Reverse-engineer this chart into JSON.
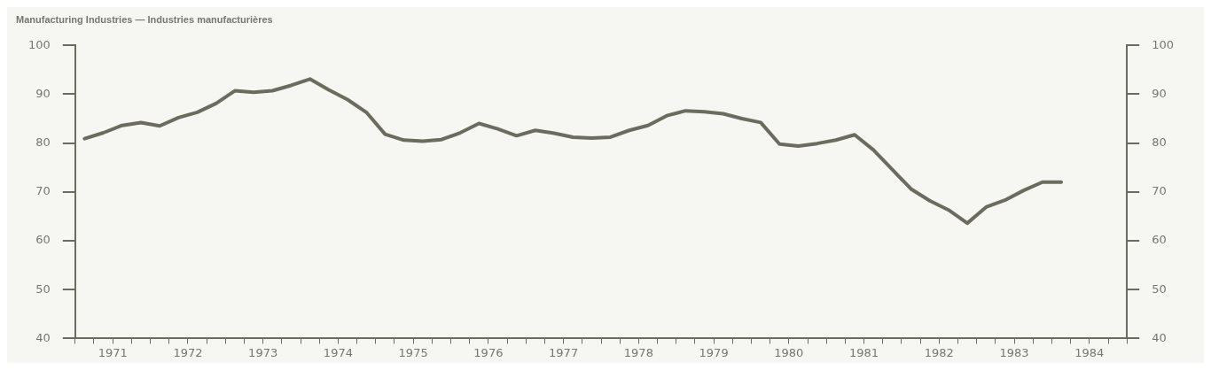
{
  "chart_data": {
    "type": "line",
    "title": "Manufacturing Industries — Industries manufacturières",
    "x": [
      1971.125,
      1971.375,
      1971.625,
      1971.875,
      1972.125,
      1972.375,
      1972.625,
      1972.875,
      1973.125,
      1973.375,
      1973.625,
      1973.875,
      1974.125,
      1974.375,
      1974.625,
      1974.875,
      1975.125,
      1975.375,
      1975.625,
      1975.875,
      1976.125,
      1976.375,
      1976.625,
      1976.875,
      1977.125,
      1977.375,
      1977.625,
      1977.875,
      1978.125,
      1978.375,
      1978.625,
      1978.875,
      1979.125,
      1979.375,
      1979.625,
      1979.875,
      1980.125,
      1980.375,
      1980.625,
      1980.875,
      1981.125,
      1981.375,
      1981.625,
      1981.875,
      1982.125,
      1982.375,
      1982.625,
      1982.875,
      1983.125,
      1983.375,
      1983.625,
      1983.875,
      1984.125
    ],
    "series": [
      {
        "color": "#6b6b5e",
        "values": [
          80.9,
          82.1,
          83.6,
          84.2,
          83.5,
          85.2,
          86.3,
          88.1,
          90.7,
          90.4,
          90.7,
          91.8,
          93.1,
          90.9,
          88.9,
          86.3,
          81.8,
          80.6,
          80.4,
          80.7,
          82.1,
          84.0,
          82.9,
          81.5,
          82.6,
          82.0,
          81.2,
          81.0,
          81.2,
          82.6,
          83.6,
          85.6,
          86.6,
          86.4,
          86.0,
          85.0,
          84.2,
          79.8,
          79.4,
          79.9,
          80.6,
          81.7,
          78.6,
          74.6,
          70.6,
          68.2,
          66.3,
          63.6,
          66.9,
          68.3,
          70.3,
          72.0,
          72.0
        ]
      }
    ],
    "xlim": [
      1971,
      1985
    ],
    "xticks": [
      {
        "value": 1971,
        "label": null
      },
      {
        "value": 1971.25,
        "label": null
      },
      {
        "value": 1971.5,
        "label": "1971"
      },
      {
        "value": 1971.75,
        "label": null
      },
      {
        "value": 1972,
        "label": null
      },
      {
        "value": 1972.25,
        "label": null
      },
      {
        "value": 1972.5,
        "label": "1972"
      },
      {
        "value": 1972.75,
        "label": null
      },
      {
        "value": 1973,
        "label": null
      },
      {
        "value": 1973.25,
        "label": null
      },
      {
        "value": 1973.5,
        "label": "1973"
      },
      {
        "value": 1973.75,
        "label": null
      },
      {
        "value": 1974,
        "label": null
      },
      {
        "value": 1974.25,
        "label": null
      },
      {
        "value": 1974.5,
        "label": "1974"
      },
      {
        "value": 1974.75,
        "label": null
      },
      {
        "value": 1975,
        "label": null
      },
      {
        "value": 1975.25,
        "label": null
      },
      {
        "value": 1975.5,
        "label": "1975"
      },
      {
        "value": 1975.75,
        "label": null
      },
      {
        "value": 1976,
        "label": null
      },
      {
        "value": 1976.25,
        "label": null
      },
      {
        "value": 1976.5,
        "label": "1976"
      },
      {
        "value": 1976.75,
        "label": null
      },
      {
        "value": 1977,
        "label": null
      },
      {
        "value": 1977.25,
        "label": null
      },
      {
        "value": 1977.5,
        "label": "1977"
      },
      {
        "value": 1977.75,
        "label": null
      },
      {
        "value": 1978,
        "label": null
      },
      {
        "value": 1978.25,
        "label": null
      },
      {
        "value": 1978.5,
        "label": "1978"
      },
      {
        "value": 1978.75,
        "label": null
      },
      {
        "value": 1979,
        "label": null
      },
      {
        "value": 1979.25,
        "label": null
      },
      {
        "value": 1979.5,
        "label": "1979"
      },
      {
        "value": 1979.75,
        "label": null
      },
      {
        "value": 1980,
        "label": null
      },
      {
        "value": 1980.25,
        "label": null
      },
      {
        "value": 1980.5,
        "label": "1980"
      },
      {
        "value": 1980.75,
        "label": null
      },
      {
        "value": 1981,
        "label": null
      },
      {
        "value": 1981.25,
        "label": null
      },
      {
        "value": 1981.5,
        "label": "1981"
      },
      {
        "value": 1981.75,
        "label": null
      },
      {
        "value": 1982,
        "label": null
      },
      {
        "value": 1982.25,
        "label": null
      },
      {
        "value": 1982.5,
        "label": "1982"
      },
      {
        "value": 1982.75,
        "label": null
      },
      {
        "value": 1983,
        "label": null
      },
      {
        "value": 1983.25,
        "label": null
      },
      {
        "value": 1983.5,
        "label": "1983"
      },
      {
        "value": 1983.75,
        "label": null
      },
      {
        "value": 1984,
        "label": null
      },
      {
        "value": 1984.25,
        "label": null
      },
      {
        "value": 1984.5,
        "label": "1984"
      },
      {
        "value": 1984.75,
        "label": null
      },
      {
        "value": 1985,
        "label": null
      }
    ],
    "ylim": [
      40,
      100
    ],
    "yticks": [
      40,
      50,
      60,
      70,
      80,
      90,
      100
    ],
    "y2lim": [
      40,
      100
    ],
    "y2ticks": [
      40,
      50,
      60,
      70,
      80,
      90,
      100
    ],
    "grid": false,
    "legend": false,
    "marker": "none",
    "line_style": "solid"
  }
}
